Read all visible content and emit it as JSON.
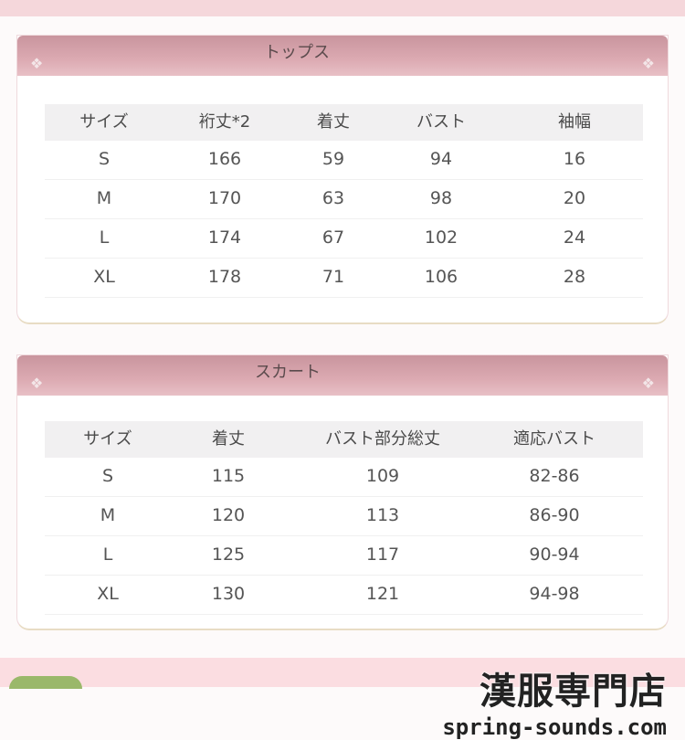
{
  "tops": {
    "title": "トップス",
    "headers": [
      "サイズ",
      "裄丈*2",
      "着丈",
      "バスト",
      "袖幅"
    ],
    "rows": [
      [
        "S",
        "166",
        "59",
        "94",
        "16"
      ],
      [
        "M",
        "170",
        "63",
        "98",
        "20"
      ],
      [
        "L",
        "174",
        "67",
        "102",
        "24"
      ],
      [
        "XL",
        "178",
        "71",
        "106",
        "28"
      ]
    ]
  },
  "skirt": {
    "title": "スカート",
    "headers": [
      "サイズ",
      "着丈",
      "バスト部分総丈",
      "適応バスト"
    ],
    "rows": [
      [
        "S",
        "115",
        "109",
        "82-86"
      ],
      [
        "M",
        "120",
        "113",
        "86-90"
      ],
      [
        "L",
        "125",
        "117",
        "90-94"
      ],
      [
        "XL",
        "130",
        "121",
        "94-98"
      ]
    ]
  },
  "logo": {
    "jp": "漢服専門店",
    "en": "spring-sounds.com"
  },
  "colors": {
    "header": "#d3a0a9",
    "band": "#f5d7db"
  }
}
